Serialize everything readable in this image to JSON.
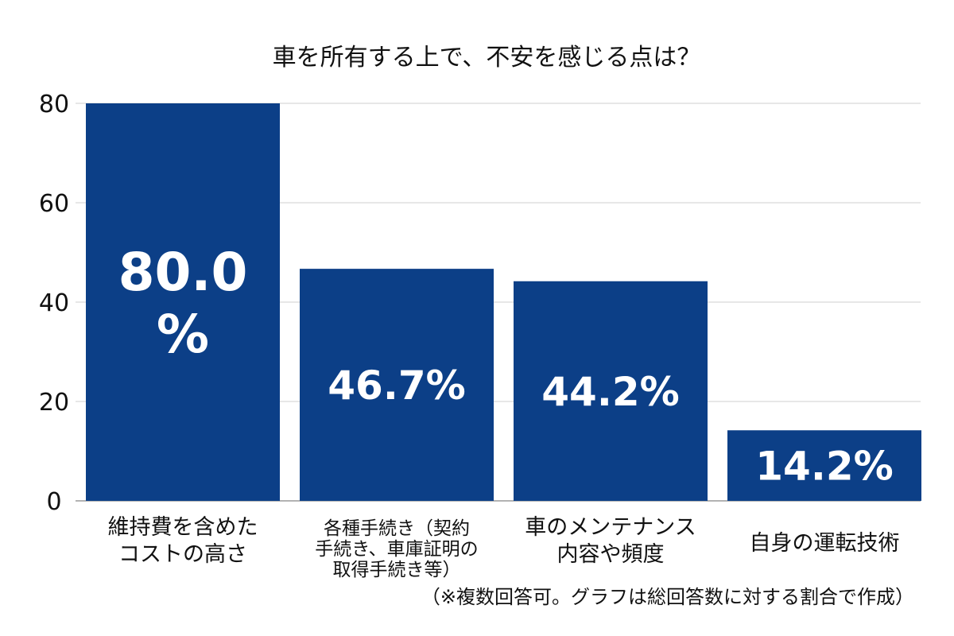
{
  "chart_data": {
    "type": "bar",
    "title": "車を所有する上で、不安を感じる点は？",
    "categories": [
      [
        "維持費を含めた",
        "コストの高さ"
      ],
      [
        "各種手続き（契約",
        "手続き、車庫証明の",
        "取得手続き等）"
      ],
      [
        "車のメンテナンス",
        "内容や頻度"
      ],
      [
        "自身の運転技術"
      ]
    ],
    "values": [
      80.0,
      46.7,
      44.2,
      14.2
    ],
    "data_labels": [
      [
        "80.0",
        "%"
      ],
      [
        "46.7%"
      ],
      [
        "44.2%"
      ],
      [
        "14.2%"
      ]
    ],
    "y_ticks": [
      "0",
      "20",
      "40",
      "60",
      "80"
    ],
    "ylim": [
      0,
      80
    ],
    "grid": true,
    "legend": "none",
    "bar_color": "#0c3f87",
    "footnote": "（※複数回答可。グラフは総回答数に対する割合で作成）"
  }
}
